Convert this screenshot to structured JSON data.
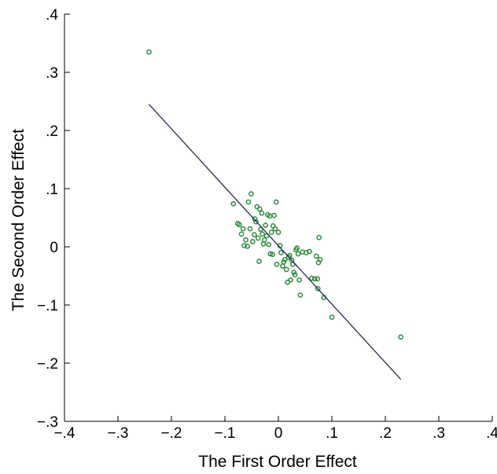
{
  "chart_data": {
    "type": "scatter",
    "title": "",
    "xlabel": "The First Order Effect",
    "ylabel": "The Second Order Effect",
    "xlim": [
      -0.4,
      0.4
    ],
    "ylim": [
      -0.3,
      0.4
    ],
    "xticks": [
      -0.4,
      -0.3,
      -0.2,
      -0.1,
      0,
      0.1,
      0.2,
      0.3,
      0.4
    ],
    "xtick_labels": [
      "−.4",
      "−.3",
      "−.2",
      "−.1",
      "0",
      ".1",
      ".2",
      ".3",
      ".4"
    ],
    "yticks": [
      -0.3,
      -0.2,
      -0.1,
      0,
      0.1,
      0.2,
      0.3,
      0.4
    ],
    "ytick_labels": [
      "−.3",
      "−.2",
      "−.1",
      "0",
      ".1",
      ".2",
      ".3",
      ".4"
    ],
    "grid": false,
    "colors": {
      "points": "#2e8b3a",
      "line": "#1f2a5a",
      "axes": "#000000"
    },
    "points": [
      {
        "x": -0.242,
        "y": 0.335
      },
      {
        "x": -0.084,
        "y": 0.074
      },
      {
        "x": -0.076,
        "y": 0.04
      },
      {
        "x": -0.073,
        "y": 0.038
      },
      {
        "x": -0.069,
        "y": 0.022
      },
      {
        "x": -0.066,
        "y": 0.031
      },
      {
        "x": -0.064,
        "y": 0.002
      },
      {
        "x": -0.061,
        "y": 0.012
      },
      {
        "x": -0.058,
        "y": 0.001
      },
      {
        "x": -0.056,
        "y": 0.077
      },
      {
        "x": -0.053,
        "y": 0.031
      },
      {
        "x": -0.051,
        "y": 0.091
      },
      {
        "x": -0.048,
        "y": 0.009
      },
      {
        "x": -0.045,
        "y": 0.021
      },
      {
        "x": -0.044,
        "y": 0.048
      },
      {
        "x": -0.042,
        "y": 0.043
      },
      {
        "x": -0.04,
        "y": 0.069
      },
      {
        "x": -0.038,
        "y": 0.015
      },
      {
        "x": -0.036,
        "y": -0.025
      },
      {
        "x": -0.035,
        "y": 0.065
      },
      {
        "x": -0.033,
        "y": 0.03
      },
      {
        "x": -0.031,
        "y": 0.058
      },
      {
        "x": -0.03,
        "y": 0.022
      },
      {
        "x": -0.028,
        "y": 0.005
      },
      {
        "x": -0.026,
        "y": 0.012
      },
      {
        "x": -0.024,
        "y": 0.037
      },
      {
        "x": -0.022,
        "y": 0.019
      },
      {
        "x": -0.02,
        "y": 0.055
      },
      {
        "x": -0.018,
        "y": 0.004
      },
      {
        "x": -0.016,
        "y": 0.053
      },
      {
        "x": -0.015,
        "y": -0.012
      },
      {
        "x": -0.013,
        "y": 0.025
      },
      {
        "x": -0.011,
        "y": -0.013
      },
      {
        "x": -0.01,
        "y": 0.036
      },
      {
        "x": -0.008,
        "y": 0.054
      },
      {
        "x": -0.006,
        "y": 0.031
      },
      {
        "x": -0.004,
        "y": 0.077
      },
      {
        "x": -0.003,
        "y": -0.03
      },
      {
        "x": 0.0,
        "y": 0.025
      },
      {
        "x": 0.003,
        "y": 0.002
      },
      {
        "x": 0.005,
        "y": -0.01
      },
      {
        "x": 0.008,
        "y": -0.033
      },
      {
        "x": 0.01,
        "y": -0.026
      },
      {
        "x": 0.012,
        "y": -0.022
      },
      {
        "x": 0.015,
        "y": -0.039
      },
      {
        "x": 0.017,
        "y": -0.061
      },
      {
        "x": 0.019,
        "y": -0.018
      },
      {
        "x": 0.021,
        "y": -0.015
      },
      {
        "x": 0.023,
        "y": -0.057
      },
      {
        "x": 0.025,
        "y": -0.023
      },
      {
        "x": 0.027,
        "y": -0.03
      },
      {
        "x": 0.029,
        "y": -0.044
      },
      {
        "x": 0.031,
        "y": -0.048
      },
      {
        "x": 0.033,
        "y": -0.005
      },
      {
        "x": 0.035,
        "y": -0.002
      },
      {
        "x": 0.037,
        "y": -0.012
      },
      {
        "x": 0.039,
        "y": -0.057
      },
      {
        "x": 0.041,
        "y": -0.083
      },
      {
        "x": 0.045,
        "y": -0.009
      },
      {
        "x": 0.052,
        "y": -0.01
      },
      {
        "x": 0.058,
        "y": -0.008
      },
      {
        "x": 0.062,
        "y": -0.054
      },
      {
        "x": 0.068,
        "y": -0.055
      },
      {
        "x": 0.071,
        "y": -0.016
      },
      {
        "x": 0.073,
        "y": -0.055
      },
      {
        "x": 0.074,
        "y": -0.072
      },
      {
        "x": 0.075,
        "y": -0.027
      },
      {
        "x": 0.076,
        "y": 0.016
      },
      {
        "x": 0.078,
        "y": -0.022
      },
      {
        "x": 0.085,
        "y": -0.087
      },
      {
        "x": 0.1,
        "y": -0.121
      },
      {
        "x": 0.229,
        "y": -0.155
      }
    ],
    "fit_line": {
      "x": [
        -0.242,
        0.229
      ],
      "y": [
        0.245,
        -0.228
      ]
    }
  }
}
